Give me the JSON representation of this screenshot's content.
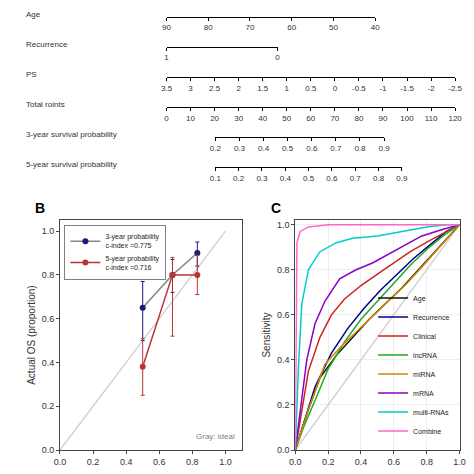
{
  "chart_data": [
    {
      "type": "nomogram",
      "rows": [
        {
          "label": "Age",
          "xlim": [
            90,
            40
          ],
          "xticks": [
            90,
            80,
            70,
            60,
            50,
            40
          ]
        },
        {
          "label": "Recurrence",
          "xlim": [
            1,
            0
          ],
          "xticks": [
            1,
            0
          ]
        },
        {
          "label": "PS",
          "xlim": [
            3.5,
            -2.5
          ],
          "xticks": [
            3.5,
            3,
            2.5,
            2,
            1.5,
            1,
            0.5,
            0,
            -0.5,
            -1,
            -1.5,
            -2,
            -2.5
          ]
        },
        {
          "label": "Total roints",
          "xlim": [
            0,
            120
          ],
          "xticks": [
            0,
            10,
            20,
            30,
            40,
            50,
            60,
            70,
            80,
            90,
            100,
            110,
            120
          ]
        },
        {
          "label": "3-year survival probability",
          "xlim": [
            0.2,
            0.9
          ],
          "xticks": [
            0.2,
            0.3,
            0.4,
            0.5,
            0.6,
            0.7,
            0.8,
            0.9
          ]
        },
        {
          "label": "5-year survival probability",
          "xlim": [
            0.1,
            0.9
          ],
          "xticks": [
            0.1,
            0.2,
            0.3,
            0.4,
            0.5,
            0.6,
            0.7,
            0.8,
            0.9
          ]
        }
      ]
    },
    {
      "type": "line",
      "title": "B",
      "ylabel": "Actual OS (proportion)",
      "xlim": [
        0.0,
        1.1
      ],
      "ylim": [
        0.0,
        1.05
      ],
      "xticks": [
        {
          "value": 0,
          "label": "0.0"
        },
        0.2,
        0.4,
        0.6,
        0.8,
        {
          "value": 1,
          "label": "1.0"
        }
      ],
      "yticks": [
        {
          "value": 0,
          "label": "0.0"
        },
        0.2,
        0.4,
        0.6,
        0.8,
        {
          "value": 1,
          "label": "1.0"
        }
      ],
      "grid": false,
      "legend": "upper left",
      "annotations": [
        {
          "text": "Gray: ideal"
        }
      ],
      "series": [
        {
          "color": "lightgray",
          "x": [
            0,
            1
          ],
          "values": [
            0,
            1
          ]
        },
        {
          "name": "3-year probability\nc-index =0.775",
          "color": "#888888",
          "marker": "circle",
          "colors": [
            "#1a1a7a",
            "#1a1a7a",
            "#1a1a7a"
          ],
          "x": [
            0.5,
            0.68,
            0.83
          ],
          "values": [
            0.65,
            0.8,
            0.9
          ],
          "error_low": [
            0.15,
            0.08,
            0.06
          ],
          "error_high": [
            0.12,
            0.07,
            0.05
          ]
        },
        {
          "name": "5-year probability\nc-index =0.716",
          "color": "#bb3333",
          "marker": "circle",
          "colors": [
            "#bb3333",
            "#bb3333",
            "#bb3333"
          ],
          "x": [
            0.5,
            0.68,
            0.83
          ],
          "values": [
            0.38,
            0.8,
            0.8
          ],
          "error_low": [
            0.13,
            0.28,
            0.09
          ],
          "error_high": [
            0.13,
            0.08,
            0.09
          ]
        }
      ]
    },
    {
      "type": "line",
      "title": "C",
      "ylabel": "Sensitivity",
      "xlim": [
        0,
        1
      ],
      "ylim": [
        0,
        1.02
      ],
      "xticks": [
        {
          "value": 0,
          "label": "0.0"
        },
        0.2,
        0.4,
        0.6,
        0.8,
        {
          "value": 1,
          "label": "1.0"
        }
      ],
      "yticks": [
        {
          "value": 0,
          "label": "0.0"
        },
        0.2,
        0.4,
        0.6,
        0.8,
        {
          "value": 1,
          "label": "1.0"
        }
      ],
      "grid": true,
      "legend": "lower right",
      "series": [
        {
          "color": "lightgray",
          "x": [
            0,
            1
          ],
          "values": [
            0,
            1
          ]
        },
        {
          "name": "Age",
          "color": "#111111",
          "x": [
            0,
            0.08,
            0.15,
            0.25,
            0.35,
            0.45,
            0.55,
            0.65,
            0.75,
            0.85,
            0.93,
            1
          ],
          "values": [
            0,
            0.18,
            0.32,
            0.42,
            0.5,
            0.58,
            0.65,
            0.72,
            0.8,
            0.88,
            0.94,
            1
          ]
        },
        {
          "name": "Recurrence",
          "color": "#00008b",
          "x": [
            0,
            0.05,
            0.12,
            0.22,
            0.32,
            0.42,
            0.52,
            0.62,
            0.72,
            0.82,
            0.92,
            1
          ],
          "values": [
            0,
            0.12,
            0.28,
            0.43,
            0.54,
            0.63,
            0.71,
            0.78,
            0.85,
            0.91,
            0.97,
            1
          ]
        },
        {
          "name": "Clinical",
          "color": "#cc2222",
          "x": [
            0,
            0.04,
            0.08,
            0.15,
            0.22,
            0.3,
            0.4,
            0.5,
            0.6,
            0.7,
            0.82,
            0.92,
            1
          ],
          "values": [
            0,
            0.18,
            0.35,
            0.5,
            0.6,
            0.67,
            0.73,
            0.78,
            0.83,
            0.88,
            0.93,
            0.97,
            1
          ]
        },
        {
          "name": "lncRNA",
          "color": "#22aa22",
          "x": [
            0,
            0.05,
            0.12,
            0.2,
            0.3,
            0.4,
            0.5,
            0.6,
            0.7,
            0.8,
            0.9,
            1
          ],
          "values": [
            0,
            0.1,
            0.22,
            0.36,
            0.48,
            0.58,
            0.66,
            0.74,
            0.82,
            0.89,
            0.95,
            1
          ]
        },
        {
          "name": "miRNA",
          "color": "#cc8800",
          "x": [
            0,
            0.08,
            0.18,
            0.28,
            0.38,
            0.48,
            0.58,
            0.68,
            0.78,
            0.88,
            0.95,
            1
          ],
          "values": [
            0,
            0.18,
            0.38,
            0.46,
            0.53,
            0.6,
            0.67,
            0.74,
            0.82,
            0.9,
            0.96,
            1
          ]
        },
        {
          "name": "mRNA",
          "color": "#8800cc",
          "x": [
            0,
            0.03,
            0.07,
            0.12,
            0.18,
            0.27,
            0.37,
            0.47,
            0.57,
            0.67,
            0.77,
            0.9,
            1
          ],
          "values": [
            0,
            0.18,
            0.4,
            0.56,
            0.66,
            0.76,
            0.8,
            0.83,
            0.87,
            0.91,
            0.95,
            0.98,
            1
          ]
        },
        {
          "name": "multi-RNAs",
          "color": "#00cccc",
          "x": [
            0,
            0.02,
            0.04,
            0.08,
            0.15,
            0.25,
            0.35,
            0.5,
            0.65,
            0.8,
            0.92,
            1
          ],
          "values": [
            0,
            0.38,
            0.65,
            0.8,
            0.88,
            0.92,
            0.94,
            0.95,
            0.97,
            0.99,
            1.0,
            1
          ]
        },
        {
          "name": "Combine",
          "color": "#ff66cc",
          "x": [
            0,
            0.005,
            0.01,
            0.03,
            0.08,
            0.2,
            1
          ],
          "values": [
            0,
            0.72,
            0.92,
            0.97,
            0.99,
            1.0,
            1
          ]
        }
      ]
    }
  ]
}
